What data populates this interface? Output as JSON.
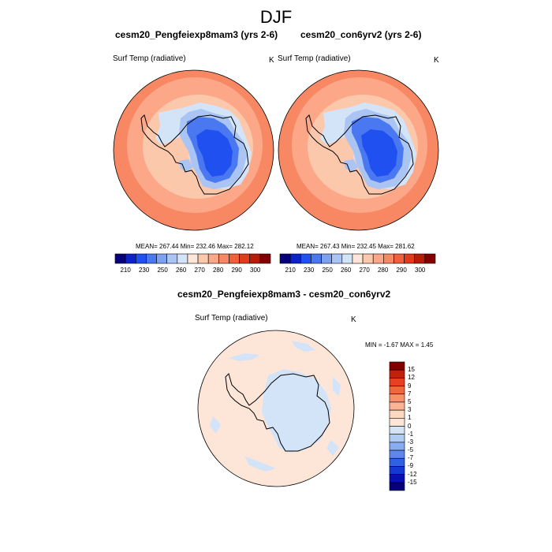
{
  "main_title": "DJF",
  "panels": [
    {
      "title": "cesm20_Pengfeiexp8mam3 (yrs 2-6)",
      "variable": "Surf Temp (radiative)",
      "units": "K",
      "stats": "MEAN= 267.44  Min= 232.46  Max= 282.12"
    },
    {
      "title": "cesm20_con6yrv2 (yrs 2-6)",
      "variable": "Surf Temp (radiative)",
      "units": "K",
      "stats": "MEAN= 267.43  Min= 232.45  Max= 281.62"
    }
  ],
  "diff_panel": {
    "title": "cesm20_Pengfeiexp8mam3 - cesm20_con6yrv2",
    "variable": "Surf Temp (radiative)",
    "units": "K",
    "minmax": "MIN =  -1.67 MAX =   1.45"
  },
  "colorbar_abs": {
    "labels": [
      "210",
      "230",
      "250",
      "260",
      "270",
      "280",
      "290",
      "300"
    ],
    "colors": [
      "#08007a",
      "#0d22c8",
      "#2050f0",
      "#4a78f0",
      "#7ea0f0",
      "#aac4f4",
      "#d4e4f8",
      "#fde6d8",
      "#fcc8ac",
      "#fca888",
      "#f88864",
      "#f0603c",
      "#e03c1c",
      "#b81c08",
      "#840000"
    ]
  },
  "colorbar_diff": {
    "labels": [
      "15",
      "12",
      "9",
      "7",
      "5",
      "3",
      "1",
      "0",
      "-1",
      "-3",
      "-5",
      "-7",
      "-9",
      "-12",
      "-15"
    ],
    "colors": [
      "#840000",
      "#c42008",
      "#e84020",
      "#f06840",
      "#f89070",
      "#fcb494",
      "#fcd8c0",
      "#fde6d8",
      "#d4e4f8",
      "#b0ccf6",
      "#88acf2",
      "#5c88ee",
      "#3060e4",
      "#1438d4",
      "#0a10b0",
      "#060078"
    ]
  }
}
